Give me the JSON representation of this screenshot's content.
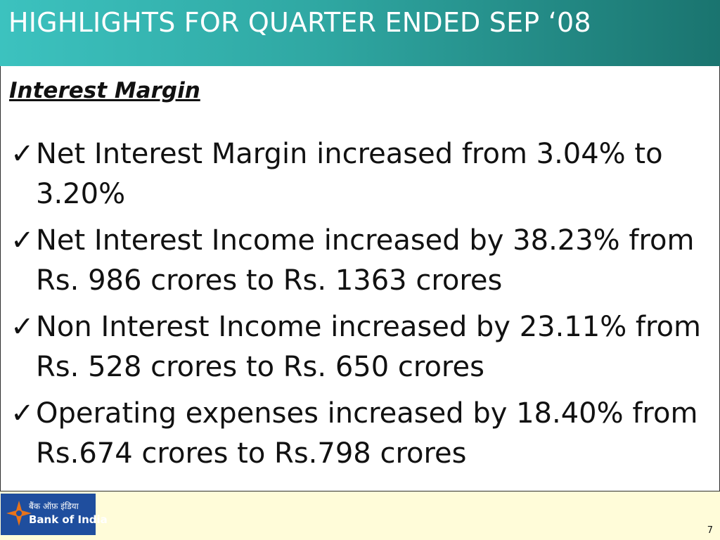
{
  "header": {
    "title": "HIGHLIGHTS FOR QUARTER ENDED SEP ‘08"
  },
  "content": {
    "section_heading": "Interest Margin",
    "bullets": [
      {
        "check": "✓",
        "text": "Net Interest Margin increased from 3.04% to 3.20%"
      },
      {
        "check": "✓",
        "text": "Net Interest Income increased by 38.23% from Rs. 986 crores  to Rs. 1363 crores"
      },
      {
        "check": "✓",
        "text": "Non Interest Income increased by 23.11% from Rs. 528 crores to Rs. 650 crores"
      },
      {
        "check": "✓",
        "text": "Operating expenses increased  by 18.40% from Rs.674 crores to  Rs.798 crores"
      }
    ]
  },
  "footer": {
    "logo": {
      "hindi_text": "बैंक ऑफ़ इंडिया",
      "english_text": "Bank of India",
      "icon": "star-logo-icon"
    },
    "page_number": "7"
  },
  "colors": {
    "header_start": "#3cc2bf",
    "header_end": "#1a746f",
    "footer_bg": "#fffcd9",
    "logo_bg": "#1f4e9e",
    "logo_star": "#e8731a"
  }
}
